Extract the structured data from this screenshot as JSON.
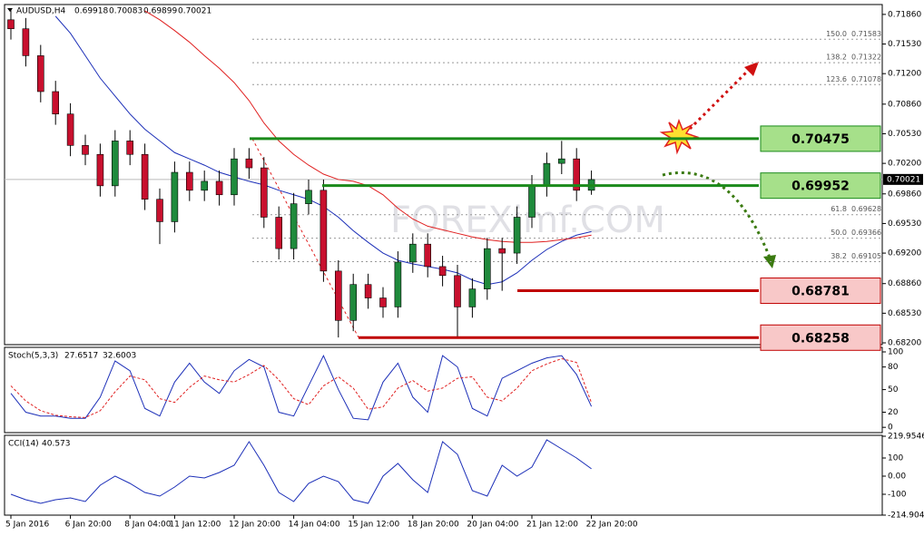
{
  "chart_data": [
    {
      "type": "candlestick",
      "symbol": "AUDUSD,H4",
      "quote": [
        0.69918,
        0.70083,
        0.69899,
        0.70021
      ],
      "watermark": "FOREXimf.COM",
      "categories": [
        "5 Jan 2016",
        null,
        null,
        null,
        "6 Jan 20:00",
        null,
        null,
        null,
        "8 Jan 04:00",
        null,
        null,
        "11 Jan 12:00",
        null,
        null,
        null,
        "12 Jan 20:00",
        null,
        null,
        null,
        "14 Jan 04:00",
        null,
        null,
        null,
        "15 Jan 12:00",
        null,
        null,
        null,
        "18 Jan 20:00",
        null,
        null,
        null,
        "20 Jan 04:00",
        null,
        null,
        null,
        "21 Jan 12:00",
        null,
        null,
        null,
        "22 Jan 20:00"
      ],
      "open": [
        0.718,
        0.717,
        0.714,
        0.71,
        0.7075,
        0.704,
        0.703,
        0.6995,
        0.7045,
        0.703,
        0.698,
        0.6955,
        0.701,
        0.699,
        0.7,
        0.6985,
        0.7025,
        0.7015,
        0.696,
        0.6925,
        0.6975,
        0.699,
        0.69,
        0.6845,
        0.6885,
        0.687,
        0.686,
        0.691,
        0.693,
        0.6905,
        0.6895,
        0.686,
        0.688,
        0.6925,
        0.692,
        0.696,
        0.6995,
        0.702,
        0.7025,
        0.699
      ],
      "high": [
        0.7192,
        0.7182,
        0.7152,
        0.7112,
        0.7087,
        0.7052,
        0.7042,
        0.7057,
        0.7057,
        0.7042,
        0.6992,
        0.7022,
        0.7022,
        0.7012,
        0.7012,
        0.7037,
        0.7037,
        0.7027,
        0.6972,
        0.6987,
        0.7002,
        0.7002,
        0.6912,
        0.6897,
        0.6897,
        0.6882,
        0.6922,
        0.6942,
        0.6942,
        0.6917,
        0.6907,
        0.6892,
        0.6937,
        0.6937,
        0.6972,
        0.7007,
        0.7032,
        0.7045,
        0.7037,
        0.7012
      ],
      "low": [
        0.7158,
        0.7128,
        0.7088,
        0.7063,
        0.7028,
        0.7018,
        0.6983,
        0.6983,
        0.7018,
        0.6968,
        0.693,
        0.6943,
        0.6978,
        0.6978,
        0.6973,
        0.6973,
        0.7003,
        0.6948,
        0.6913,
        0.6913,
        0.6963,
        0.6888,
        0.6826,
        0.6833,
        0.6858,
        0.6848,
        0.6848,
        0.6898,
        0.6893,
        0.6883,
        0.6826,
        0.6848,
        0.6868,
        0.6878,
        0.6908,
        0.6948,
        0.6983,
        0.7008,
        0.6978,
        0.6985
      ],
      "close": [
        0.717,
        0.714,
        0.71,
        0.7075,
        0.704,
        0.703,
        0.6995,
        0.7045,
        0.703,
        0.698,
        0.6955,
        0.701,
        0.699,
        0.7,
        0.6985,
        0.7025,
        0.7015,
        0.696,
        0.6925,
        0.6975,
        0.699,
        0.69,
        0.6845,
        0.6885,
        0.687,
        0.686,
        0.691,
        0.693,
        0.6905,
        0.6895,
        0.686,
        0.688,
        0.6925,
        0.692,
        0.696,
        0.6995,
        0.702,
        0.7025,
        0.699,
        0.7002
      ],
      "up_color": "#1f8a3c",
      "down_color": "#c8102e",
      "moving_averages": [
        {
          "color": "#1c2fb8",
          "values": [
            null,
            null,
            null,
            0.7184,
            0.7165,
            0.714,
            0.7115,
            0.7095,
            0.7075,
            0.7058,
            0.7045,
            0.7032,
            0.7025,
            0.7018,
            0.701,
            0.7005,
            0.7,
            0.6996,
            0.699,
            0.6985,
            0.698,
            0.6972,
            0.696,
            0.6945,
            0.6932,
            0.692,
            0.6912,
            0.6908,
            0.6905,
            0.6902,
            0.6898,
            0.689,
            0.6885,
            0.6888,
            0.6898,
            0.6912,
            0.6924,
            0.6933,
            0.694,
            0.6944
          ]
        },
        {
          "color": "#e02020",
          "values": [
            null,
            null,
            null,
            null,
            null,
            null,
            null,
            null,
            null,
            0.719,
            0.718,
            0.7168,
            0.7155,
            0.714,
            0.7126,
            0.711,
            0.709,
            0.7065,
            0.7045,
            0.703,
            0.7018,
            0.7008,
            0.7002,
            0.7,
            0.6995,
            0.6985,
            0.697,
            0.6958,
            0.695,
            0.6946,
            0.6942,
            0.6938,
            0.6935,
            0.6933,
            0.6932,
            0.6932,
            0.6933,
            0.6935,
            0.6937,
            0.694
          ]
        }
      ],
      "levels": [
        {
          "value": 0.70475,
          "color": "#1a8a1a",
          "fill": "#a6e08a"
        },
        {
          "value": 0.69952,
          "color": "#1a8a1a",
          "fill": "#a6e08a"
        },
        {
          "value": 0.68781,
          "color": "#c00000",
          "fill": "#f8c8c8"
        },
        {
          "value": 0.68258,
          "color": "#c00000",
          "fill": "#f8c8c8"
        }
      ],
      "fib": [
        {
          "level": {
            "value": 150,
            "label": "150.0"
          },
          "price": 0.71583
        },
        {
          "level": 138.2,
          "price": 0.71322
        },
        {
          "level": 123.6,
          "price": 0.71078
        },
        {
          "level": 61.8,
          "price": 0.69628
        },
        {
          "level": {
            "value": 50,
            "label": "50.0"
          },
          "price": 0.69366
        },
        {
          "level": 38.2,
          "price": 0.69105
        }
      ],
      "ylim": [
        0.6818,
        0.7197
      ],
      "yticks": [
        {
          "value": 0.7186,
          "label": "0.71860"
        },
        {
          "value": 0.7153,
          "label": "0.71530"
        },
        {
          "value": 0.712,
          "label": "0.71200"
        },
        {
          "value": 0.7086,
          "label": "0.70860"
        },
        {
          "value": 0.7053,
          "label": "0.70530"
        },
        {
          "value": 0.702,
          "label": "0.70200"
        },
        {
          "value": 0.6986,
          "label": "0.69860"
        },
        {
          "value": 0.6953,
          "label": "0.69530"
        },
        {
          "value": 0.692,
          "label": "0.69200"
        },
        {
          "value": 0.6886,
          "label": "0.68860"
        },
        {
          "value": 0.6853,
          "label": "0.68530"
        },
        {
          "value": 0.682,
          "label": "0.68200"
        }
      ]
    },
    {
      "type": "line",
      "title": "Stoch(5,3,3)",
      "readings": [
        27.6517,
        32.6003
      ],
      "series": [
        {
          "color": "#1c2fb8",
          "dashed": false,
          "values": [
            45,
            20,
            15,
            15,
            12,
            12,
            40,
            88,
            75,
            25,
            15,
            60,
            85,
            60,
            45,
            75,
            90,
            80,
            20,
            15,
            55,
            95,
            50,
            12,
            10,
            60,
            85,
            40,
            20,
            95,
            80,
            25,
            15,
            65,
            75,
            85,
            92,
            95,
            70,
            27.6517
          ]
        },
        {
          "color": "#e02020",
          "dashed": true,
          "values": [
            55,
            35,
            22,
            16,
            14,
            13,
            22,
            47,
            68,
            63,
            38,
            33,
            53,
            68,
            63,
            60,
            70,
            82,
            63,
            38,
            30,
            55,
            67,
            52,
            24,
            27,
            52,
            62,
            48,
            52,
            65,
            67,
            40,
            35,
            52,
            75,
            84,
            91,
            86,
            32.6003
          ]
        }
      ],
      "ylim": [
        -7,
        106
      ],
      "yticks": [
        100,
        80,
        50,
        20,
        0
      ]
    },
    {
      "type": "line",
      "title": "CCI(14)",
      "readings": [
        40.573
      ],
      "series": [
        {
          "color": "#1c2fb8",
          "dashed": false,
          "values": [
            -100,
            -130,
            -150,
            -130,
            -120,
            -140,
            -50,
            0,
            -40,
            -90,
            -110,
            -60,
            0,
            -10,
            20,
            60,
            190,
            60,
            -90,
            -140,
            -40,
            0,
            -30,
            -130,
            -150,
            0,
            70,
            -20,
            -90,
            190,
            120,
            -80,
            -110,
            60,
            0,
            50,
            200,
            150,
            100,
            40.573
          ]
        }
      ],
      "ylim": [
        -215,
        225
      ],
      "yticks": [
        219.9546,
        100,
        {
          "value": 0,
          "label": "0.00"
        },
        -100,
        -214.9047
      ]
    }
  ]
}
